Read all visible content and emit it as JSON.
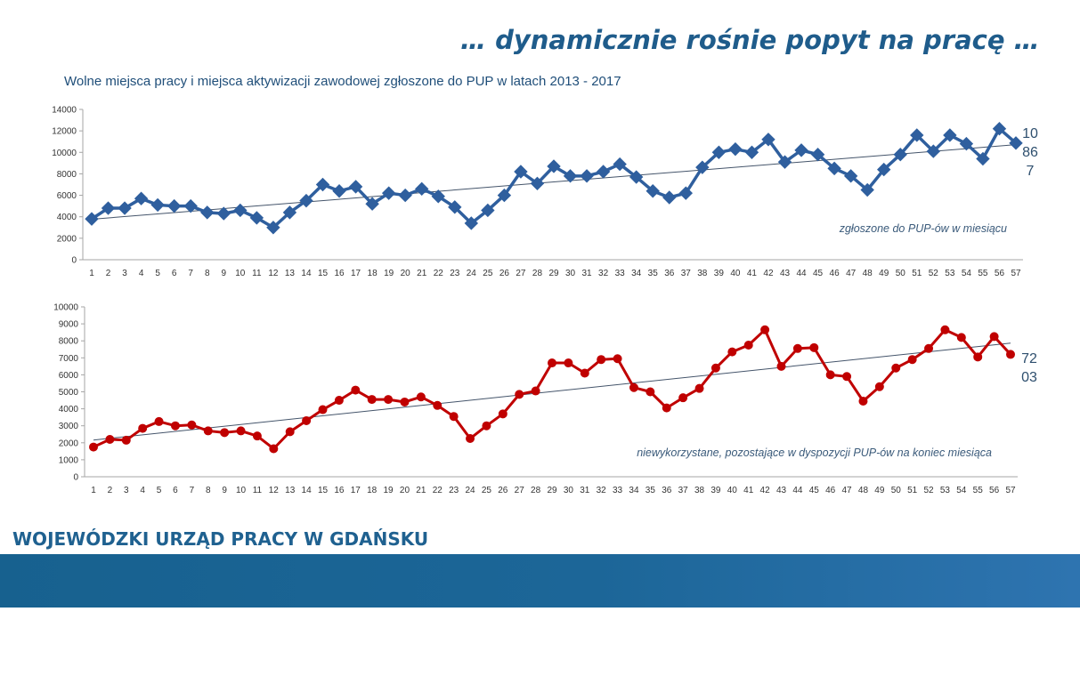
{
  "slide_title": "… dynamicznie rośnie popyt na pracę …",
  "chart_title": "Wolne miejsca pracy i miejsca aktywizacji zawodowej zgłoszone do PUP w latach 2013 - 2017",
  "organization": "WOJEWÓDZKI URZĄD PRACY W GDAŃSKU",
  "colors": {
    "top_series": "#2f5f9e",
    "bottom_series": "#c00000",
    "trendline": "#44546a",
    "footer_band": "#17618f",
    "brand_text": "#1f6190"
  },
  "chart_data": [
    {
      "type": "line",
      "marker": "diamond",
      "x": [
        1,
        2,
        3,
        4,
        5,
        6,
        7,
        8,
        9,
        10,
        11,
        12,
        13,
        14,
        15,
        16,
        17,
        18,
        19,
        20,
        21,
        22,
        23,
        24,
        25,
        26,
        27,
        28,
        29,
        30,
        31,
        32,
        33,
        34,
        35,
        36,
        37,
        38,
        39,
        40,
        41,
        42,
        43,
        44,
        45,
        46,
        47,
        48,
        49,
        50,
        51,
        52,
        53,
        54,
        55,
        56,
        57
      ],
      "values": [
        3800,
        4800,
        4800,
        5700,
        5100,
        5000,
        5000,
        4400,
        4300,
        4600,
        3900,
        3000,
        4400,
        5500,
        7000,
        6400,
        6800,
        5200,
        6200,
        6000,
        6600,
        5900,
        4900,
        3400,
        4600,
        6000,
        8200,
        7100,
        8700,
        7800,
        7800,
        8200,
        8900,
        7700,
        6400,
        5800,
        6200,
        8600,
        10000,
        10300,
        10000,
        11200,
        9100,
        10200,
        9800,
        8500,
        7800,
        6500,
        8400,
        9800,
        11600,
        10100,
        11600,
        10800,
        9400,
        12200,
        10867
      ],
      "ylim": [
        0,
        14000
      ],
      "yticks": [
        0,
        2000,
        4000,
        6000,
        8000,
        10000,
        12000,
        14000
      ],
      "trendline": true,
      "annotation": "zgłoszone do PUP-ów w miesiącu",
      "last_value_label": [
        "10",
        "86",
        "7"
      ]
    },
    {
      "type": "line",
      "marker": "circle",
      "x": [
        1,
        2,
        3,
        4,
        5,
        6,
        7,
        8,
        9,
        10,
        11,
        12,
        13,
        14,
        15,
        16,
        17,
        18,
        19,
        20,
        21,
        22,
        23,
        24,
        25,
        26,
        27,
        28,
        29,
        30,
        31,
        32,
        33,
        34,
        35,
        36,
        37,
        38,
        39,
        40,
        41,
        42,
        43,
        44,
        45,
        46,
        47,
        48,
        49,
        50,
        51,
        52,
        53,
        54,
        55,
        56,
        57
      ],
      "values": [
        1750,
        2200,
        2150,
        2850,
        3250,
        3000,
        3050,
        2700,
        2600,
        2700,
        2400,
        1650,
        2650,
        3300,
        3950,
        4500,
        5100,
        4550,
        4550,
        4400,
        4700,
        4200,
        3550,
        2250,
        3000,
        3700,
        4850,
        5050,
        6700,
        6700,
        6100,
        6900,
        6950,
        5250,
        5000,
        4050,
        4650,
        5200,
        6400,
        7350,
        7750,
        8650,
        6500,
        7550,
        7600,
        6000,
        5900,
        4450,
        5300,
        6400,
        6900,
        7550,
        8650,
        8200,
        7050,
        8250,
        7203
      ],
      "ylim": [
        0,
        10000
      ],
      "yticks": [
        0,
        1000,
        2000,
        3000,
        4000,
        5000,
        6000,
        7000,
        8000,
        9000,
        10000
      ],
      "trendline": true,
      "annotation": "niewykorzystane, pozostające w dyspozycji PUP-ów na koniec miesiąca",
      "last_value_label": [
        "72",
        "03"
      ]
    }
  ]
}
